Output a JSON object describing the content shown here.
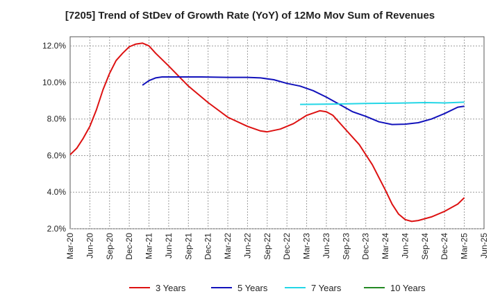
{
  "chart_data": {
    "type": "line",
    "title": "[7205]  Trend of StDev of Growth Rate (YoY) of 12Mo Mov Sum of Revenues",
    "xlabel": "",
    "ylabel": "",
    "ylim": [
      2.0,
      12.5
    ],
    "yticks": [
      2.0,
      4.0,
      6.0,
      8.0,
      10.0,
      12.0
    ],
    "ytick_labels": [
      "2.0%",
      "4.0%",
      "6.0%",
      "8.0%",
      "10.0%",
      "12.0%"
    ],
    "x_tick_labels": [
      "Mar-20",
      "Jun-20",
      "Sep-20",
      "Dec-20",
      "Mar-21",
      "Jun-21",
      "Sep-21",
      "Dec-21",
      "Mar-22",
      "Jun-22",
      "Sep-22",
      "Dec-22",
      "Mar-23",
      "Jun-23",
      "Sep-23",
      "Dec-23",
      "Mar-24",
      "Jun-24",
      "Sep-24",
      "Dec-24",
      "Mar-25",
      "Jun-25"
    ],
    "grid": true,
    "legend_position": "bottom",
    "series": [
      {
        "name": "3 Years",
        "color": "#dd1111",
        "points": [
          [
            0,
            6.05
          ],
          [
            1,
            6.4
          ],
          [
            2,
            6.95
          ],
          [
            3,
            7.6
          ],
          [
            4,
            8.5
          ],
          [
            5,
            9.6
          ],
          [
            6,
            10.5
          ],
          [
            7,
            11.2
          ],
          [
            8,
            11.6
          ],
          [
            9,
            11.95
          ],
          [
            10,
            12.1
          ],
          [
            11,
            12.15
          ],
          [
            12,
            12.0
          ],
          [
            13,
            11.6
          ],
          [
            15,
            10.9
          ],
          [
            18,
            9.8
          ],
          [
            21,
            8.9
          ],
          [
            24,
            8.1
          ],
          [
            27,
            7.6
          ],
          [
            29,
            7.35
          ],
          [
            30,
            7.3
          ],
          [
            32,
            7.45
          ],
          [
            34,
            7.75
          ],
          [
            36,
            8.2
          ],
          [
            38,
            8.45
          ],
          [
            39,
            8.4
          ],
          [
            40,
            8.2
          ],
          [
            42,
            7.4
          ],
          [
            44,
            6.6
          ],
          [
            46,
            5.5
          ],
          [
            48,
            4.1
          ],
          [
            49,
            3.35
          ],
          [
            50,
            2.8
          ],
          [
            51,
            2.5
          ],
          [
            52,
            2.4
          ],
          [
            53,
            2.45
          ],
          [
            55,
            2.65
          ],
          [
            57,
            2.95
          ],
          [
            59,
            3.35
          ],
          [
            60,
            3.7
          ]
        ]
      },
      {
        "name": "5 Years",
        "color": "#1111bb",
        "points": [
          [
            11,
            9.85
          ],
          [
            12,
            10.1
          ],
          [
            13,
            10.25
          ],
          [
            14,
            10.3
          ],
          [
            16,
            10.3
          ],
          [
            20,
            10.3
          ],
          [
            24,
            10.28
          ],
          [
            27,
            10.28
          ],
          [
            29,
            10.25
          ],
          [
            31,
            10.15
          ],
          [
            33,
            9.95
          ],
          [
            35,
            9.8
          ],
          [
            37,
            9.55
          ],
          [
            39,
            9.2
          ],
          [
            41,
            8.8
          ],
          [
            43,
            8.4
          ],
          [
            45,
            8.15
          ],
          [
            47,
            7.85
          ],
          [
            49,
            7.7
          ],
          [
            51,
            7.72
          ],
          [
            53,
            7.8
          ],
          [
            55,
            8.0
          ],
          [
            57,
            8.3
          ],
          [
            59,
            8.65
          ],
          [
            60,
            8.7
          ]
        ]
      },
      {
        "name": "7 Years",
        "color": "#22d6e6",
        "points": [
          [
            35,
            8.8
          ],
          [
            40,
            8.82
          ],
          [
            45,
            8.85
          ],
          [
            50,
            8.87
          ],
          [
            54,
            8.9
          ],
          [
            57,
            8.88
          ],
          [
            60,
            8.92
          ]
        ]
      },
      {
        "name": "10 Years",
        "color": "#228822",
        "points": []
      }
    ]
  }
}
